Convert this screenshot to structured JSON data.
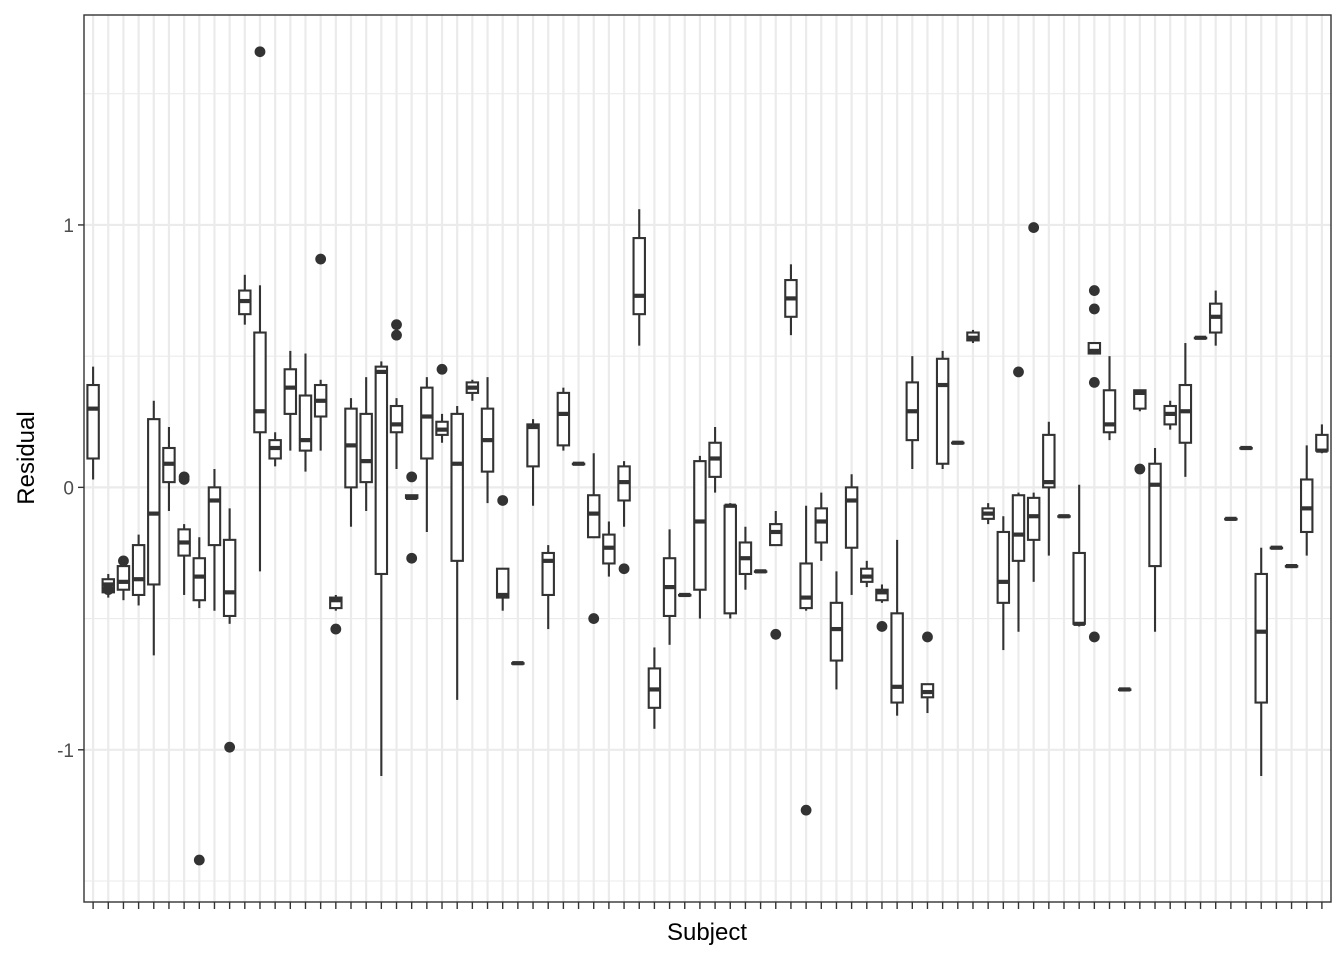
{
  "chart_data": {
    "type": "boxplot",
    "xlabel": "Subject",
    "ylabel": "Residual",
    "ylim": [
      -1.58,
      1.8
    ],
    "y_ticks": [
      -1,
      0,
      1
    ],
    "y_tick_labels": [
      "-1",
      "0",
      "1"
    ],
    "grid": true,
    "x_tick_labels_shown": false,
    "subject_count": 82,
    "boxes": [
      {
        "i": 0,
        "q1": 0.11,
        "med": 0.3,
        "q3": 0.39,
        "lo": 0.03,
        "hi": 0.46,
        "out": []
      },
      {
        "i": 1,
        "q1": -0.4,
        "med": -0.37,
        "q3": -0.35,
        "lo": -0.42,
        "hi": -0.33,
        "out": [
          -0.39
        ]
      },
      {
        "i": 2,
        "q1": -0.39,
        "med": -0.36,
        "q3": -0.3,
        "lo": -0.43,
        "hi": -0.28,
        "out": [
          -0.28
        ]
      },
      {
        "i": 3,
        "q1": -0.41,
        "med": -0.35,
        "q3": -0.22,
        "lo": -0.45,
        "hi": -0.18,
        "out": []
      },
      {
        "i": 4,
        "q1": -0.37,
        "med": -0.1,
        "q3": 0.26,
        "lo": -0.64,
        "hi": 0.33,
        "out": []
      },
      {
        "i": 5,
        "q1": 0.02,
        "med": 0.09,
        "q3": 0.15,
        "lo": -0.09,
        "hi": 0.23,
        "out": []
      },
      {
        "i": 6,
        "q1": -0.26,
        "med": -0.21,
        "q3": -0.16,
        "lo": -0.41,
        "hi": -0.14,
        "out": [
          0.03,
          0.04
        ]
      },
      {
        "i": 7,
        "q1": -0.43,
        "med": -0.34,
        "q3": -0.27,
        "lo": -0.46,
        "hi": -0.19,
        "out": [
          -1.42
        ]
      },
      {
        "i": 8,
        "q1": -0.22,
        "med": -0.05,
        "q3": 0.0,
        "lo": -0.47,
        "hi": 0.07,
        "out": []
      },
      {
        "i": 9,
        "q1": -0.49,
        "med": -0.4,
        "q3": -0.2,
        "lo": -0.52,
        "hi": -0.08,
        "out": [
          -0.99
        ]
      },
      {
        "i": 10,
        "q1": 0.66,
        "med": 0.71,
        "q3": 0.75,
        "lo": 0.62,
        "hi": 0.81,
        "out": []
      },
      {
        "i": 11,
        "q1": 0.21,
        "med": 0.29,
        "q3": 0.59,
        "lo": -0.32,
        "hi": 0.77,
        "out": [
          1.66
        ]
      },
      {
        "i": 12,
        "q1": 0.11,
        "med": 0.15,
        "q3": 0.18,
        "lo": 0.08,
        "hi": 0.21,
        "out": []
      },
      {
        "i": 13,
        "q1": 0.28,
        "med": 0.38,
        "q3": 0.45,
        "lo": 0.14,
        "hi": 0.52,
        "out": []
      },
      {
        "i": 14,
        "q1": 0.14,
        "med": 0.18,
        "q3": 0.35,
        "lo": 0.06,
        "hi": 0.51,
        "out": []
      },
      {
        "i": 15,
        "q1": 0.27,
        "med": 0.33,
        "q3": 0.39,
        "lo": 0.14,
        "hi": 0.41,
        "out": [
          0.87
        ]
      },
      {
        "i": 16,
        "q1": -0.46,
        "med": -0.43,
        "q3": -0.42,
        "lo": -0.47,
        "hi": -0.41,
        "out": [
          -0.54
        ]
      },
      {
        "i": 17,
        "q1": 0.0,
        "med": 0.16,
        "q3": 0.3,
        "lo": -0.15,
        "hi": 0.34,
        "out": []
      },
      {
        "i": 18,
        "q1": 0.02,
        "med": 0.1,
        "q3": 0.28,
        "lo": -0.09,
        "hi": 0.42,
        "out": []
      },
      {
        "i": 19,
        "q1": -0.33,
        "med": 0.44,
        "q3": 0.46,
        "lo": -1.1,
        "hi": 0.48,
        "out": []
      },
      {
        "i": 20,
        "q1": 0.21,
        "med": 0.24,
        "q3": 0.31,
        "lo": 0.07,
        "hi": 0.34,
        "out": [
          0.58,
          0.62
        ]
      },
      {
        "i": 21,
        "q1": -0.04,
        "med": -0.04,
        "q3": -0.03,
        "lo": -0.04,
        "hi": -0.03,
        "out": [
          0.04,
          -0.27
        ]
      },
      {
        "i": 22,
        "q1": 0.11,
        "med": 0.27,
        "q3": 0.38,
        "lo": -0.17,
        "hi": 0.42,
        "out": []
      },
      {
        "i": 23,
        "q1": 0.2,
        "med": 0.22,
        "q3": 0.25,
        "lo": 0.17,
        "hi": 0.28,
        "out": [
          0.45
        ]
      },
      {
        "i": 24,
        "q1": -0.28,
        "med": 0.09,
        "q3": 0.28,
        "lo": -0.81,
        "hi": 0.31,
        "out": []
      },
      {
        "i": 25,
        "q1": 0.36,
        "med": 0.38,
        "q3": 0.4,
        "lo": 0.33,
        "hi": 0.41,
        "out": []
      },
      {
        "i": 26,
        "q1": 0.06,
        "med": 0.18,
        "q3": 0.3,
        "lo": -0.06,
        "hi": 0.42,
        "out": []
      },
      {
        "i": 27,
        "q1": -0.42,
        "med": -0.41,
        "q3": -0.31,
        "lo": -0.47,
        "hi": -0.31,
        "out": [
          -0.05
        ]
      },
      {
        "i": 28,
        "q1": -0.67,
        "med": -0.67,
        "q3": -0.67,
        "lo": -0.67,
        "hi": -0.67,
        "out": []
      },
      {
        "i": 29,
        "q1": 0.08,
        "med": 0.23,
        "q3": 0.24,
        "lo": -0.07,
        "hi": 0.26,
        "out": []
      },
      {
        "i": 30,
        "q1": -0.41,
        "med": -0.28,
        "q3": -0.25,
        "lo": -0.54,
        "hi": -0.22,
        "out": []
      },
      {
        "i": 31,
        "q1": 0.16,
        "med": 0.28,
        "q3": 0.36,
        "lo": 0.14,
        "hi": 0.38,
        "out": []
      },
      {
        "i": 32,
        "q1": 0.09,
        "med": 0.09,
        "q3": 0.09,
        "lo": 0.09,
        "hi": 0.09,
        "out": []
      },
      {
        "i": 33,
        "q1": -0.19,
        "med": -0.1,
        "q3": -0.03,
        "lo": -0.19,
        "hi": 0.13,
        "out": [
          -0.5
        ]
      },
      {
        "i": 34,
        "q1": -0.29,
        "med": -0.23,
        "q3": -0.18,
        "lo": -0.34,
        "hi": -0.13,
        "out": []
      },
      {
        "i": 35,
        "q1": -0.05,
        "med": 0.02,
        "q3": 0.08,
        "lo": -0.15,
        "hi": 0.1,
        "out": [
          -0.31
        ]
      },
      {
        "i": 36,
        "q1": 0.66,
        "med": 0.73,
        "q3": 0.95,
        "lo": 0.54,
        "hi": 1.06,
        "out": []
      },
      {
        "i": 37,
        "q1": -0.84,
        "med": -0.77,
        "q3": -0.69,
        "lo": -0.92,
        "hi": -0.61,
        "out": []
      },
      {
        "i": 38,
        "q1": -0.49,
        "med": -0.38,
        "q3": -0.27,
        "lo": -0.6,
        "hi": -0.16,
        "out": []
      },
      {
        "i": 39,
        "q1": -0.41,
        "med": -0.41,
        "q3": -0.41,
        "lo": -0.41,
        "hi": -0.41,
        "out": []
      },
      {
        "i": 40,
        "q1": -0.39,
        "med": -0.13,
        "q3": 0.1,
        "lo": -0.5,
        "hi": 0.12,
        "out": []
      },
      {
        "i": 41,
        "q1": 0.04,
        "med": 0.11,
        "q3": 0.17,
        "lo": -0.02,
        "hi": 0.23,
        "out": []
      },
      {
        "i": 42,
        "q1": -0.48,
        "med": -0.07,
        "q3": -0.07,
        "lo": -0.5,
        "hi": -0.06,
        "out": []
      },
      {
        "i": 43,
        "q1": -0.33,
        "med": -0.27,
        "q3": -0.21,
        "lo": -0.39,
        "hi": -0.15,
        "out": []
      },
      {
        "i": 44,
        "q1": -0.32,
        "med": -0.32,
        "q3": -0.32,
        "lo": -0.32,
        "hi": -0.32,
        "out": []
      },
      {
        "i": 45,
        "q1": -0.22,
        "med": -0.17,
        "q3": -0.14,
        "lo": -0.22,
        "hi": -0.09,
        "out": [
          -0.56
        ]
      },
      {
        "i": 46,
        "q1": 0.65,
        "med": 0.72,
        "q3": 0.79,
        "lo": 0.58,
        "hi": 0.85,
        "out": []
      },
      {
        "i": 47,
        "q1": -0.46,
        "med": -0.42,
        "q3": -0.29,
        "lo": -0.47,
        "hi": -0.07,
        "out": [
          -1.23
        ]
      },
      {
        "i": 48,
        "q1": -0.21,
        "med": -0.13,
        "q3": -0.08,
        "lo": -0.28,
        "hi": -0.02,
        "out": []
      },
      {
        "i": 49,
        "q1": -0.66,
        "med": -0.54,
        "q3": -0.44,
        "lo": -0.77,
        "hi": -0.32,
        "out": []
      },
      {
        "i": 50,
        "q1": -0.23,
        "med": -0.05,
        "q3": 0.0,
        "lo": -0.41,
        "hi": 0.05,
        "out": []
      },
      {
        "i": 51,
        "q1": -0.36,
        "med": -0.34,
        "q3": -0.31,
        "lo": -0.38,
        "hi": -0.28,
        "out": []
      },
      {
        "i": 52,
        "q1": -0.43,
        "med": -0.4,
        "q3": -0.39,
        "lo": -0.44,
        "hi": -0.37,
        "out": [
          -0.53
        ]
      },
      {
        "i": 53,
        "q1": -0.82,
        "med": -0.76,
        "q3": -0.48,
        "lo": -0.87,
        "hi": -0.2,
        "out": []
      },
      {
        "i": 54,
        "q1": 0.18,
        "med": 0.29,
        "q3": 0.4,
        "lo": 0.07,
        "hi": 0.5,
        "out": []
      },
      {
        "i": 55,
        "q1": -0.8,
        "med": -0.78,
        "q3": -0.75,
        "lo": -0.86,
        "hi": -0.75,
        "out": [
          -0.57
        ]
      },
      {
        "i": 56,
        "q1": 0.09,
        "med": 0.39,
        "q3": 0.49,
        "lo": 0.07,
        "hi": 0.52,
        "out": []
      },
      {
        "i": 57,
        "q1": 0.17,
        "med": 0.17,
        "q3": 0.17,
        "lo": 0.17,
        "hi": 0.17,
        "out": []
      },
      {
        "i": 58,
        "q1": 0.56,
        "med": 0.57,
        "q3": 0.59,
        "lo": 0.55,
        "hi": 0.6,
        "out": []
      },
      {
        "i": 59,
        "q1": -0.12,
        "med": -0.1,
        "q3": -0.08,
        "lo": -0.14,
        "hi": -0.06,
        "out": []
      },
      {
        "i": 60,
        "q1": -0.44,
        "med": -0.36,
        "q3": -0.17,
        "lo": -0.62,
        "hi": -0.11,
        "out": []
      },
      {
        "i": 61,
        "q1": -0.28,
        "med": -0.18,
        "q3": -0.03,
        "lo": -0.55,
        "hi": -0.02,
        "out": [
          0.44
        ]
      },
      {
        "i": 62,
        "q1": -0.2,
        "med": -0.11,
        "q3": -0.04,
        "lo": -0.36,
        "hi": -0.02,
        "out": [
          0.99
        ]
      },
      {
        "i": 63,
        "q1": 0.0,
        "med": 0.02,
        "q3": 0.2,
        "lo": -0.26,
        "hi": 0.25,
        "out": []
      },
      {
        "i": 64,
        "q1": -0.11,
        "med": -0.11,
        "q3": -0.11,
        "lo": -0.11,
        "hi": -0.11,
        "out": []
      },
      {
        "i": 65,
        "q1": -0.52,
        "med": -0.52,
        "q3": -0.25,
        "lo": -0.53,
        "hi": 0.01,
        "out": []
      },
      {
        "i": 66,
        "q1": 0.51,
        "med": 0.52,
        "q3": 0.55,
        "lo": 0.51,
        "hi": 0.55,
        "out": [
          0.75,
          0.68,
          0.4,
          -0.57
        ]
      },
      {
        "i": 67,
        "q1": 0.21,
        "med": 0.24,
        "q3": 0.37,
        "lo": 0.18,
        "hi": 0.5,
        "out": []
      },
      {
        "i": 68,
        "q1": -0.77,
        "med": -0.77,
        "q3": -0.77,
        "lo": -0.77,
        "hi": -0.77,
        "out": []
      },
      {
        "i": 69,
        "q1": 0.3,
        "med": 0.36,
        "q3": 0.37,
        "lo": 0.29,
        "hi": 0.37,
        "out": [
          0.07
        ]
      },
      {
        "i": 70,
        "q1": -0.3,
        "med": 0.01,
        "q3": 0.09,
        "lo": -0.55,
        "hi": 0.15,
        "out": []
      },
      {
        "i": 71,
        "q1": 0.24,
        "med": 0.28,
        "q3": 0.31,
        "lo": 0.22,
        "hi": 0.33,
        "out": []
      },
      {
        "i": 72,
        "q1": 0.17,
        "med": 0.29,
        "q3": 0.39,
        "lo": 0.04,
        "hi": 0.55,
        "out": []
      },
      {
        "i": 73,
        "q1": 0.57,
        "med": 0.57,
        "q3": 0.57,
        "lo": 0.57,
        "hi": 0.57,
        "out": []
      },
      {
        "i": 74,
        "q1": 0.59,
        "med": 0.65,
        "q3": 0.7,
        "lo": 0.54,
        "hi": 0.75,
        "out": []
      },
      {
        "i": 75,
        "q1": -0.12,
        "med": -0.12,
        "q3": -0.12,
        "lo": -0.12,
        "hi": -0.12,
        "out": []
      },
      {
        "i": 76,
        "q1": 0.15,
        "med": 0.15,
        "q3": 0.15,
        "lo": 0.15,
        "hi": 0.15,
        "out": []
      },
      {
        "i": 77,
        "q1": -0.82,
        "med": -0.55,
        "q3": -0.33,
        "lo": -1.1,
        "hi": -0.23,
        "out": []
      },
      {
        "i": 78,
        "q1": -0.23,
        "med": -0.23,
        "q3": -0.23,
        "lo": -0.23,
        "hi": -0.23,
        "out": []
      },
      {
        "i": 79,
        "q1": -0.3,
        "med": -0.3,
        "q3": -0.3,
        "lo": -0.3,
        "hi": -0.3,
        "out": []
      },
      {
        "i": 80,
        "q1": -0.17,
        "med": -0.08,
        "q3": 0.03,
        "lo": -0.26,
        "hi": 0.16,
        "out": []
      },
      {
        "i": 81,
        "q1": 0.14,
        "med": 0.14,
        "q3": 0.2,
        "lo": 0.13,
        "hi": 0.24,
        "out": []
      }
    ]
  }
}
